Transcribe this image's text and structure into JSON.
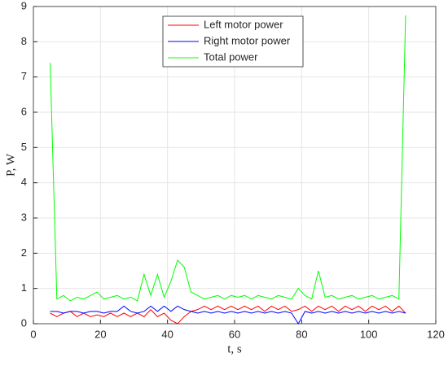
{
  "chart_data": {
    "type": "line",
    "x_label": "t, s",
    "y_label": "P, W",
    "x": [
      5,
      7,
      9,
      11,
      13,
      15,
      17,
      19,
      21,
      23,
      25,
      27,
      29,
      31,
      33,
      35,
      37,
      39,
      41,
      43,
      45,
      47,
      49,
      51,
      53,
      55,
      57,
      59,
      61,
      63,
      65,
      67,
      69,
      71,
      73,
      75,
      77,
      79,
      81,
      83,
      85,
      87,
      89,
      91,
      93,
      95,
      97,
      99,
      101,
      103,
      105,
      107,
      109,
      111
    ],
    "series": [
      {
        "name": "Left motor power",
        "color": "#ff0000",
        "values": [
          0.3,
          0.2,
          0.3,
          0.35,
          0.2,
          0.3,
          0.2,
          0.25,
          0.2,
          0.3,
          0.2,
          0.3,
          0.2,
          0.3,
          0.2,
          0.4,
          0.2,
          0.3,
          0.1,
          0.0,
          0.2,
          0.35,
          0.4,
          0.5,
          0.4,
          0.5,
          0.4,
          0.5,
          0.4,
          0.5,
          0.4,
          0.5,
          0.35,
          0.5,
          0.4,
          0.5,
          0.35,
          0.4,
          0.5,
          0.35,
          0.5,
          0.4,
          0.5,
          0.35,
          0.5,
          0.4,
          0.5,
          0.35,
          0.5,
          0.4,
          0.5,
          0.35,
          0.5,
          0.3
        ]
      },
      {
        "name": "Right motor power",
        "color": "#0000ff",
        "values": [
          0.35,
          0.35,
          0.3,
          0.35,
          0.35,
          0.3,
          0.35,
          0.35,
          0.3,
          0.35,
          0.35,
          0.5,
          0.35,
          0.3,
          0.35,
          0.5,
          0.35,
          0.5,
          0.35,
          0.5,
          0.4,
          0.35,
          0.3,
          0.35,
          0.3,
          0.35,
          0.3,
          0.35,
          0.3,
          0.35,
          0.3,
          0.35,
          0.3,
          0.35,
          0.3,
          0.35,
          0.3,
          0.0,
          0.35,
          0.3,
          0.35,
          0.3,
          0.35,
          0.3,
          0.35,
          0.3,
          0.35,
          0.3,
          0.35,
          0.3,
          0.35,
          0.3,
          0.35,
          0.3
        ]
      },
      {
        "name": "Total power",
        "color": "#00ff00",
        "values": [
          7.4,
          0.7,
          0.8,
          0.65,
          0.75,
          0.7,
          0.8,
          0.9,
          0.7,
          0.75,
          0.8,
          0.7,
          0.75,
          0.65,
          1.4,
          0.8,
          1.4,
          0.75,
          1.2,
          1.8,
          1.6,
          0.9,
          0.8,
          0.7,
          0.75,
          0.8,
          0.7,
          0.8,
          0.75,
          0.8,
          0.7,
          0.8,
          0.75,
          0.7,
          0.8,
          0.75,
          0.7,
          1.0,
          0.8,
          0.7,
          1.5,
          0.75,
          0.8,
          0.7,
          0.75,
          0.8,
          0.7,
          0.75,
          0.8,
          0.7,
          0.75,
          0.8,
          0.7,
          8.75
        ]
      }
    ],
    "xlim": [
      0,
      120
    ],
    "xticks": [
      0,
      20,
      40,
      60,
      80,
      100,
      120
    ],
    "ylim": [
      0,
      9
    ],
    "yticks": [
      0,
      1,
      2,
      3,
      4,
      5,
      6,
      7,
      8,
      9
    ],
    "grid": true,
    "legend": "top"
  }
}
